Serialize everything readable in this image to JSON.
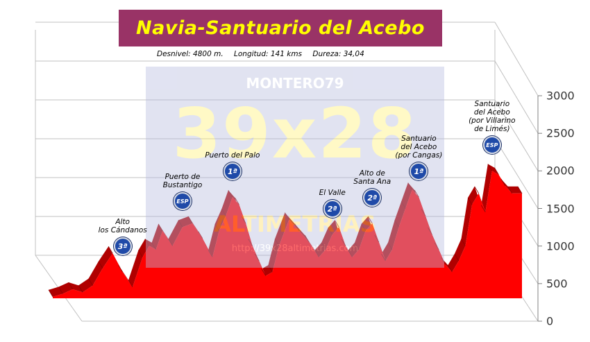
{
  "title": "Navia-Santuario del Acebo",
  "stats": {
    "desnivel": "Desnivel:  4800 m.",
    "longitud": "Longitud:  141 kms",
    "dureza": "Dureza:  34,04"
  },
  "watermark": {
    "author": "MONTERO79",
    "logo": "39x28",
    "name": "ALTIMETRÍAS",
    "url": "http://39x28altimetrias.com"
  },
  "colors": {
    "banner": "#993366",
    "title": "#ffff00",
    "profile": "#ff0000",
    "profile_dark": "#b00000",
    "badge": "#1f4aa8"
  },
  "chart_data": {
    "type": "area",
    "title": "Navia-Santuario del Acebo",
    "ylabel": "",
    "xlabel": "",
    "ylim": [
      0,
      3000
    ],
    "yticks": [
      0,
      500,
      1000,
      1500,
      2000,
      2500,
      3000
    ],
    "xlim": [
      0,
      141
    ],
    "grid": true,
    "x": [
      0,
      3,
      6,
      9,
      12,
      15,
      18,
      21,
      24,
      27,
      29,
      31,
      33,
      36,
      39,
      42,
      45,
      48,
      50,
      52,
      54,
      56,
      58,
      60,
      62,
      64,
      66,
      68,
      71,
      74,
      77,
      80,
      82,
      84,
      86,
      88,
      90,
      92,
      94,
      96,
      98,
      100,
      102,
      104,
      106,
      108,
      110,
      112,
      114,
      116,
      118,
      120,
      122,
      124,
      126,
      128,
      130,
      132,
      134,
      136,
      138,
      141
    ],
    "y": [
      20,
      60,
      120,
      80,
      170,
      400,
      600,
      350,
      150,
      550,
      700,
      650,
      900,
      700,
      950,
      1000,
      800,
      550,
      900,
      1100,
      1350,
      1250,
      1000,
      700,
      500,
      300,
      350,
      700,
      1050,
      900,
      750,
      550,
      650,
      850,
      950,
      700,
      550,
      650,
      900,
      1000,
      750,
      500,
      650,
      950,
      1200,
      1450,
      1350,
      1100,
      850,
      650,
      450,
      350,
      500,
      700,
      1250,
      1400,
      1150,
      1700,
      1650,
      1500,
      1400,
      1400
    ],
    "climbs": [
      {
        "name": "Alto\nlos Cándanos",
        "category": "3ª",
        "x": 21
      },
      {
        "name": "Puerto de\nBustantigo",
        "category": "ESP",
        "x": 39
      },
      {
        "name": "Puerto del Palo",
        "category": "1ª",
        "x": 54
      },
      {
        "name": "El Valle",
        "category": "2ª",
        "x": 84
      },
      {
        "name": "Alto de\nSanta Ana",
        "category": "2ª",
        "x": 96
      },
      {
        "name": "Santuario\ndel Acebo\n(por Cangas)",
        "category": "1ª",
        "x": 110
      },
      {
        "name": "Santuario\ndel Acebo\n(por Villarino\nde Limés)",
        "category": "ESP",
        "x": 132
      }
    ]
  }
}
